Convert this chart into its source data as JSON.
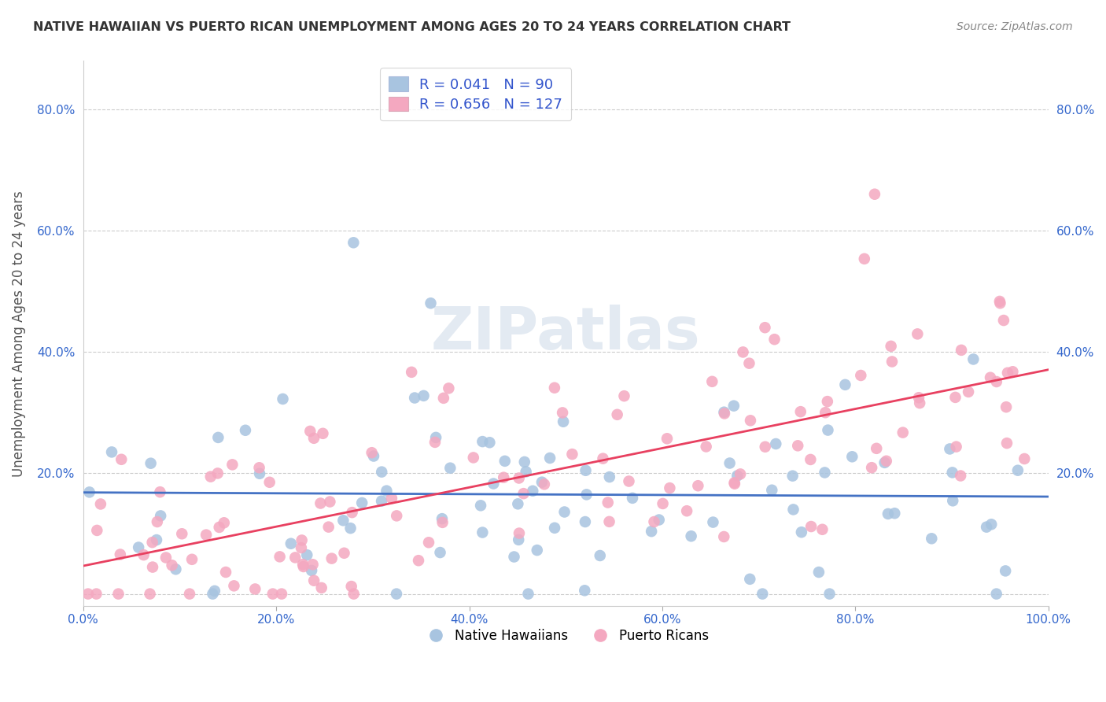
{
  "title": "NATIVE HAWAIIAN VS PUERTO RICAN UNEMPLOYMENT AMONG AGES 20 TO 24 YEARS CORRELATION CHART",
  "source": "Source: ZipAtlas.com",
  "ylabel": "Unemployment Among Ages 20 to 24 years",
  "xlim": [
    0,
    1.0
  ],
  "ylim": [
    -0.02,
    0.88
  ],
  "xticks": [
    0.0,
    0.2,
    0.4,
    0.6,
    0.8,
    1.0
  ],
  "xticklabels": [
    "0.0%",
    "20.0%",
    "40.0%",
    "60.0%",
    "80.0%",
    "100.0%"
  ],
  "yticks": [
    0.0,
    0.2,
    0.4,
    0.6,
    0.8
  ],
  "yticklabels": [
    "",
    "20.0%",
    "40.0%",
    "60.0%",
    "80.0%"
  ],
  "nh_R": 0.041,
  "nh_N": 90,
  "pr_R": 0.656,
  "pr_N": 127,
  "nh_color": "#a8c4e0",
  "pr_color": "#f4a8c0",
  "nh_line_color": "#4472c4",
  "pr_line_color": "#e84060",
  "background_color": "#ffffff",
  "grid_color": "#cccccc",
  "watermark": "ZIPatlas"
}
